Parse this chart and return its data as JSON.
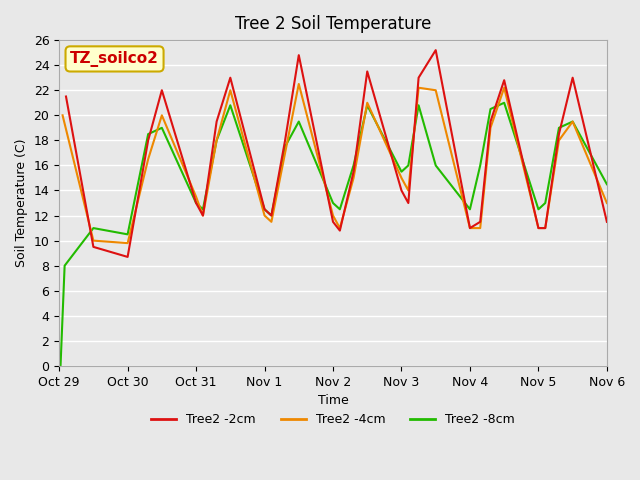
{
  "title": "Tree 2 Soil Temperature",
  "xlabel": "Time",
  "ylabel": "Soil Temperature (C)",
  "annotation_text": "TZ_soilco2",
  "annotation_color": "#cc0000",
  "annotation_bg": "#ffffcc",
  "annotation_border": "#ccaa00",
  "ylim": [
    0,
    26
  ],
  "yticks": [
    0,
    2,
    4,
    6,
    8,
    10,
    12,
    14,
    16,
    18,
    20,
    22,
    24,
    26
  ],
  "bg_color": "#e8e8e8",
  "plot_bg": "#e8e8e8",
  "grid_color": "#ffffff",
  "line_colors": {
    "2cm": "#dd1111",
    "4cm": "#ee8800",
    "8cm": "#22bb00"
  },
  "legend_labels": [
    "Tree2 -2cm",
    "Tree2 -4cm",
    "Tree2 -8cm"
  ],
  "x_tick_labels": [
    "Oct 29",
    "Oct 30",
    "Oct 31",
    "Nov 1",
    "Nov 2",
    "Nov 3",
    "Nov 4",
    "Nov 5",
    "Nov 6"
  ],
  "num_days": 8,
  "series": {
    "2cm": {
      "points_x": [
        0.1,
        0.5,
        1.0,
        1.3,
        1.5,
        2.0,
        2.1,
        2.3,
        2.5,
        3.0,
        3.1,
        3.3,
        3.5,
        4.0,
        4.1,
        4.3,
        4.5,
        5.0,
        5.1,
        5.25,
        5.5,
        6.0,
        6.15,
        6.3,
        6.5,
        7.0,
        7.1,
        7.3,
        7.5,
        8.0
      ],
      "points_y": [
        21.5,
        9.5,
        8.7,
        18.0,
        22.0,
        13.0,
        12.0,
        19.5,
        23.0,
        12.5,
        12.0,
        18.0,
        24.8,
        11.5,
        10.8,
        15.5,
        23.5,
        14.0,
        13.0,
        23.0,
        25.2,
        11.0,
        11.5,
        19.5,
        22.8,
        11.0,
        11.0,
        18.5,
        23.0,
        11.5
      ]
    },
    "4cm": {
      "points_x": [
        0.05,
        0.5,
        1.0,
        1.3,
        1.5,
        2.0,
        2.1,
        2.3,
        2.5,
        3.0,
        3.1,
        3.3,
        3.5,
        4.0,
        4.1,
        4.3,
        4.5,
        5.0,
        5.1,
        5.25,
        5.5,
        6.0,
        6.15,
        6.3,
        6.5,
        7.0,
        7.1,
        7.3,
        7.5,
        8.0
      ],
      "points_y": [
        20.0,
        10.0,
        9.8,
        16.5,
        20.0,
        13.5,
        12.0,
        18.0,
        22.0,
        12.0,
        11.5,
        17.0,
        22.5,
        12.0,
        11.0,
        15.0,
        21.0,
        15.0,
        14.0,
        22.2,
        22.0,
        11.0,
        11.0,
        19.0,
        22.2,
        11.0,
        11.0,
        18.0,
        19.5,
        13.0
      ]
    },
    "8cm": {
      "points_x": [
        0.02,
        0.08,
        0.5,
        1.0,
        1.3,
        1.5,
        2.0,
        2.1,
        2.3,
        2.5,
        3.0,
        3.1,
        3.3,
        3.5,
        4.0,
        4.1,
        4.3,
        4.5,
        5.0,
        5.1,
        5.25,
        5.5,
        6.0,
        6.15,
        6.3,
        6.5,
        7.0,
        7.1,
        7.3,
        7.5,
        8.0
      ],
      "points_y": [
        0.0,
        8.0,
        11.0,
        10.5,
        18.5,
        19.0,
        13.0,
        12.5,
        18.0,
        20.8,
        12.5,
        12.0,
        17.5,
        19.5,
        13.0,
        12.5,
        16.0,
        20.8,
        15.5,
        16.0,
        20.8,
        16.0,
        12.5,
        16.0,
        20.5,
        21.0,
        12.5,
        13.0,
        19.0,
        19.5,
        14.5
      ]
    }
  }
}
